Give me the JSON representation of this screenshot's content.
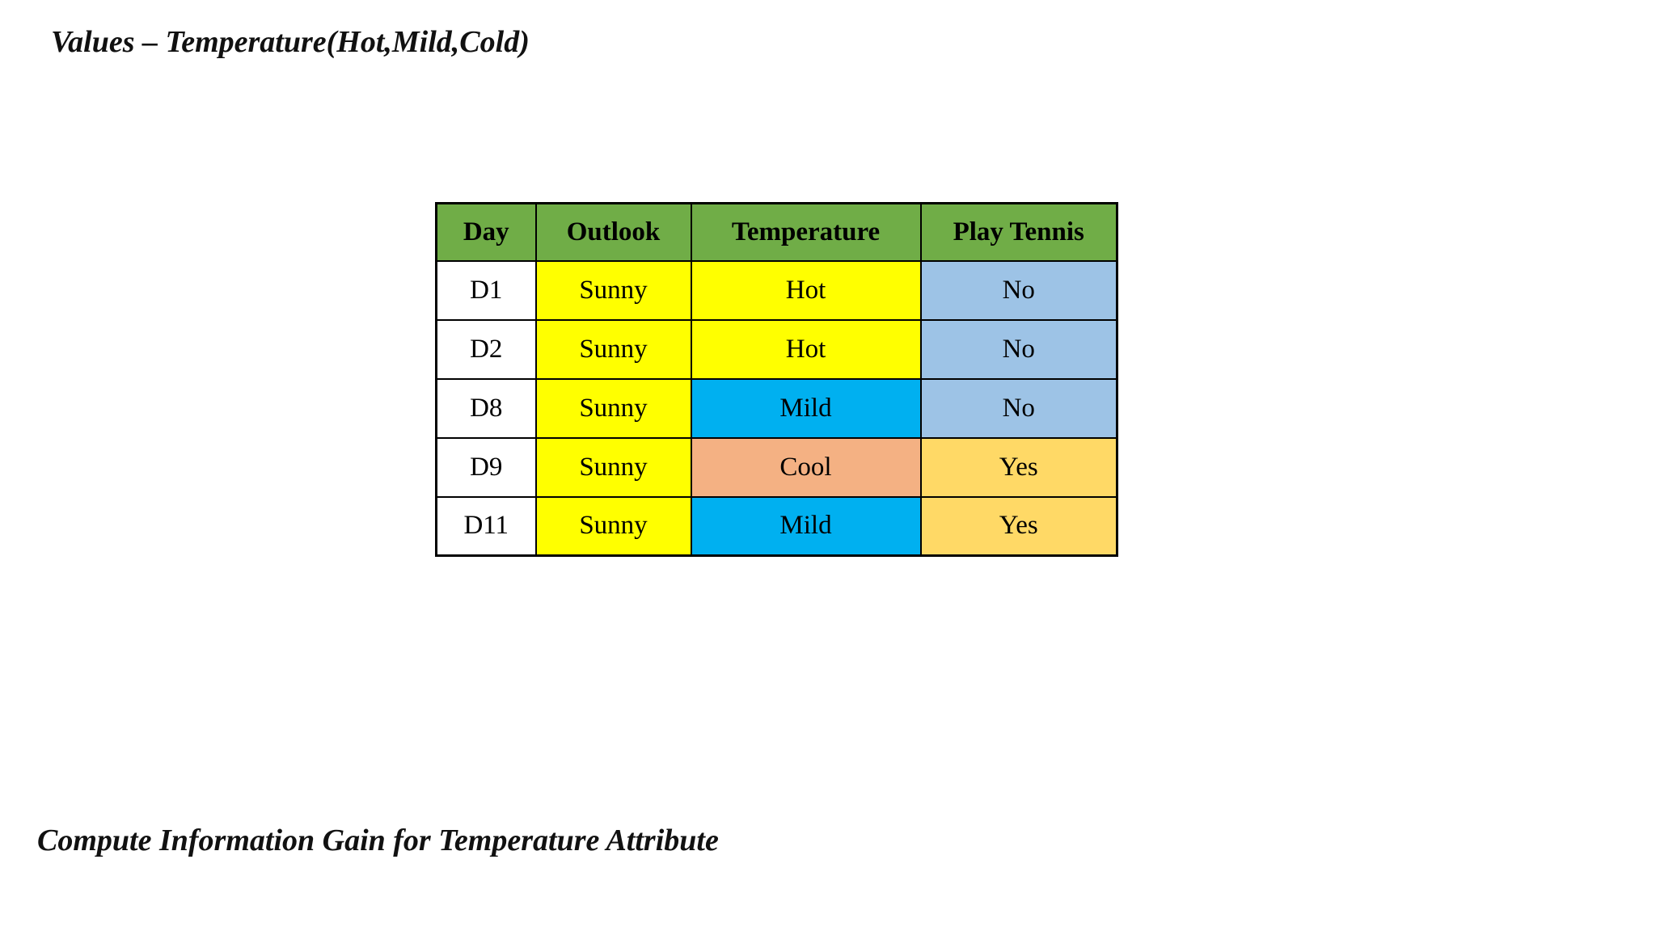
{
  "page": {
    "title_top": "Values – Temperature(Hot,Mild,Cold)",
    "title_bottom": "Compute Information Gain for Temperature Attribute",
    "background": "#FFFFFF",
    "text_color": "#111111"
  },
  "table": {
    "header_bg": "#70AD47",
    "border_color": "#000000",
    "headers": [
      "Day",
      "Outlook",
      "Temperature",
      "Play Tennis"
    ],
    "rows": [
      {
        "cells": [
          {
            "text": "D1",
            "bg": "#FFFFFF"
          },
          {
            "text": "Sunny",
            "bg": "#FFFF00"
          },
          {
            "text": "Hot",
            "bg": "#FFFF00"
          },
          {
            "text": "No",
            "bg": "#9DC3E6"
          }
        ]
      },
      {
        "cells": [
          {
            "text": "D2",
            "bg": "#FFFFFF"
          },
          {
            "text": "Sunny",
            "bg": "#FFFF00"
          },
          {
            "text": "Hot",
            "bg": "#FFFF00"
          },
          {
            "text": "No",
            "bg": "#9DC3E6"
          }
        ]
      },
      {
        "cells": [
          {
            "text": "D8",
            "bg": "#FFFFFF"
          },
          {
            "text": "Sunny",
            "bg": "#FFFF00"
          },
          {
            "text": "Mild",
            "bg": "#00B0F0"
          },
          {
            "text": "No",
            "bg": "#9DC3E6"
          }
        ]
      },
      {
        "cells": [
          {
            "text": "D9",
            "bg": "#FFFFFF"
          },
          {
            "text": "Sunny",
            "bg": "#FFFF00"
          },
          {
            "text": "Cool",
            "bg": "#F4B183"
          },
          {
            "text": "Yes",
            "bg": "#FFD966"
          }
        ]
      },
      {
        "cells": [
          {
            "text": "D11",
            "bg": "#FFFFFF"
          },
          {
            "text": "Sunny",
            "bg": "#FFFF00"
          },
          {
            "text": "Mild",
            "bg": "#00B0F0"
          },
          {
            "text": "Yes",
            "bg": "#FFD966"
          }
        ]
      }
    ]
  }
}
